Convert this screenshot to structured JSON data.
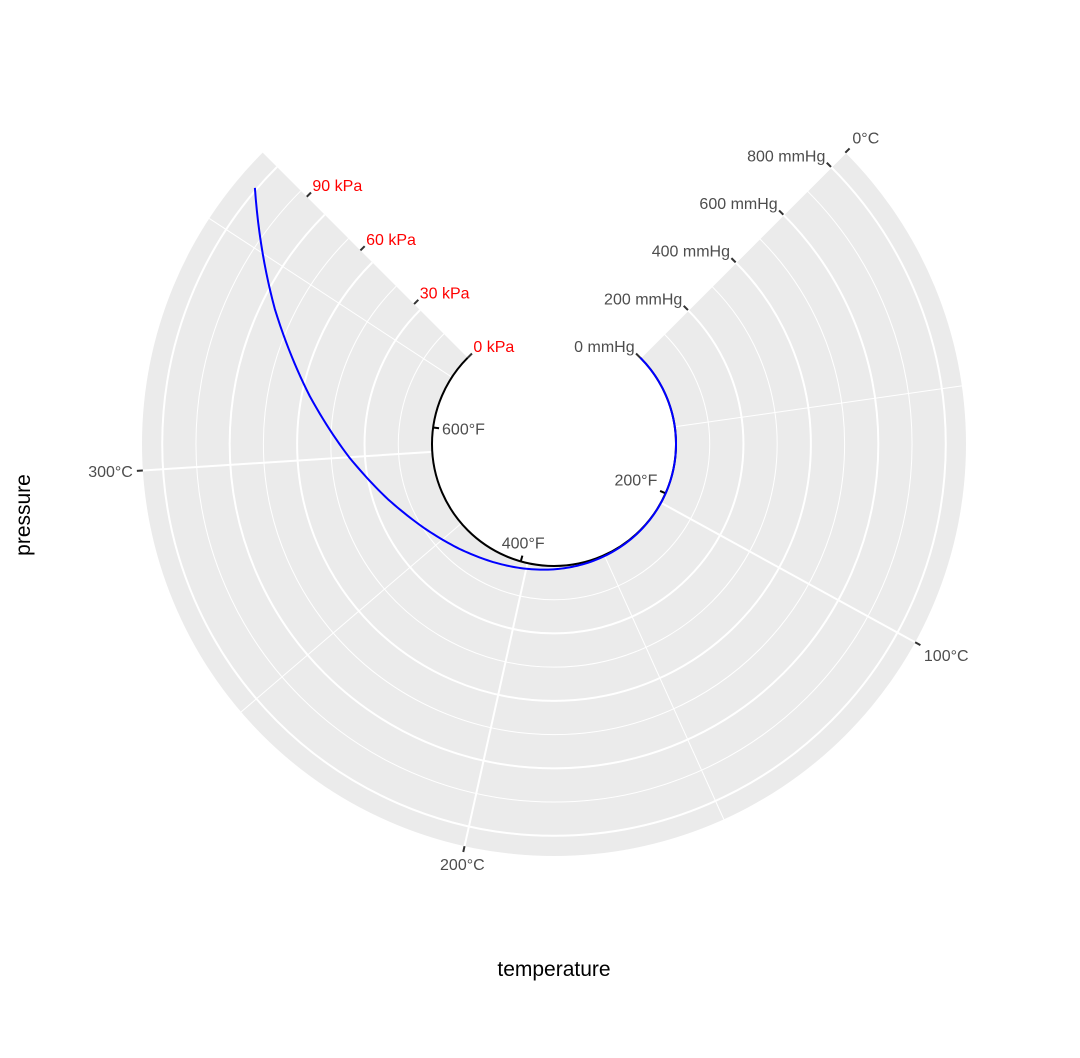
{
  "chart_data": {
    "type": "line",
    "coord": "polar",
    "xlabel": "temperature",
    "ylabel": "pressure",
    "theta_axis": {
      "variable": "temperature",
      "unit": "°C",
      "range": [
        0,
        366
      ],
      "ticks": [
        {
          "value": 0,
          "label": "0°C"
        },
        {
          "value": 100,
          "label": "100°C"
        },
        {
          "value": 200,
          "label": "200°C"
        },
        {
          "value": 300,
          "label": "300°C"
        }
      ]
    },
    "theta_axis_secondary": {
      "unit": "°F",
      "ticks": [
        {
          "value": 93.33,
          "label": "200°F"
        },
        {
          "value": 204.44,
          "label": "400°F"
        },
        {
          "value": 315.56,
          "label": "600°F"
        }
      ]
    },
    "r_axis": {
      "variable": "pressure",
      "unit": "mmHg",
      "range": [
        0,
        860
      ],
      "ticks": [
        {
          "value": 0,
          "label": "0 mmHg"
        },
        {
          "value": 200,
          "label": "200 mmHg"
        },
        {
          "value": 400,
          "label": "400 mmHg"
        },
        {
          "value": 600,
          "label": "600 mmHg"
        },
        {
          "value": 800,
          "label": "800 mmHg"
        }
      ]
    },
    "r_axis_secondary": {
      "unit": "kPa",
      "color": "#ff0000",
      "ticks": [
        {
          "value": 0,
          "label": "0 kPa"
        },
        {
          "value": 225.0,
          "label": "30 kPa"
        },
        {
          "value": 450.0,
          "label": "60 kPa"
        },
        {
          "value": 675.1,
          "label": "90 kPa"
        }
      ]
    },
    "series": [
      {
        "color": "#0000ff",
        "points": [
          {
            "temperature": 0,
            "pressure": 0.0002
          },
          {
            "temperature": 20,
            "pressure": 0.0012
          },
          {
            "temperature": 40,
            "pressure": 0.006
          },
          {
            "temperature": 60,
            "pressure": 0.03
          },
          {
            "temperature": 80,
            "pressure": 0.09
          },
          {
            "temperature": 100,
            "pressure": 0.27
          },
          {
            "temperature": 120,
            "pressure": 0.75
          },
          {
            "temperature": 140,
            "pressure": 1.85
          },
          {
            "temperature": 160,
            "pressure": 4.2
          },
          {
            "temperature": 180,
            "pressure": 8.8
          },
          {
            "temperature": 200,
            "pressure": 17.3
          },
          {
            "temperature": 220,
            "pressure": 32.1
          },
          {
            "temperature": 240,
            "pressure": 57.0
          },
          {
            "temperature": 260,
            "pressure": 96.0
          },
          {
            "temperature": 280,
            "pressure": 157.0
          },
          {
            "temperature": 300,
            "pressure": 247.0
          },
          {
            "temperature": 320,
            "pressure": 376.0
          },
          {
            "temperature": 340,
            "pressure": 558.0
          },
          {
            "temperature": 360,
            "pressure": 806.0
          }
        ]
      }
    ],
    "grid": true,
    "legend": "none"
  }
}
